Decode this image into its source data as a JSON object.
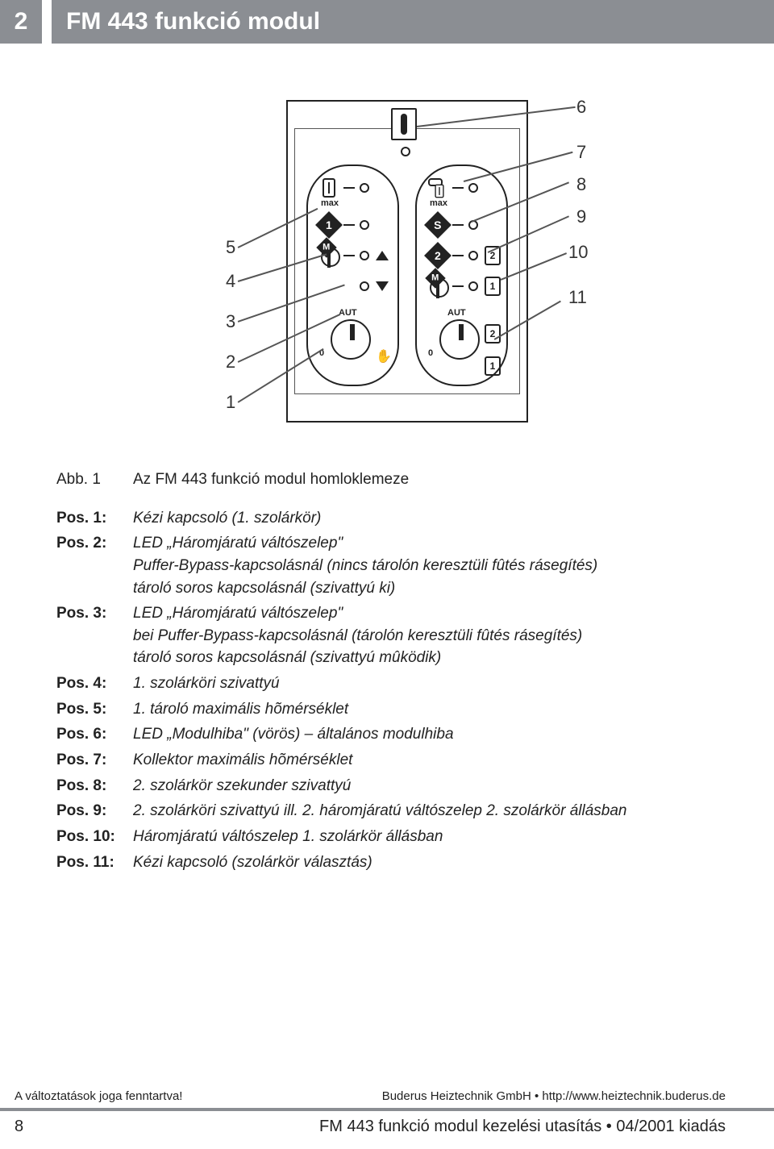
{
  "header": {
    "chapter_num": "2",
    "title": "FM 443 funkció modul"
  },
  "figure": {
    "callouts_left": [
      "5",
      "4",
      "3",
      "2",
      "1"
    ],
    "callouts_right": [
      "6",
      "7",
      "8",
      "9",
      "10",
      "11"
    ],
    "panel_left": {
      "max": "max",
      "badge1": "1",
      "badgeM": "M",
      "aut": "AUT",
      "zero": "0"
    },
    "panel_right": {
      "max": "max",
      "badgeS": "S",
      "badge2": "2",
      "badgeM": "M",
      "aut": "AUT",
      "zero": "0",
      "sq2a": "2",
      "sq1a": "1",
      "sq2b": "2",
      "sq1b": "1"
    }
  },
  "abb": {
    "key": "Abb. 1",
    "val": "Az FM 443 funkció modul homloklemeze"
  },
  "positions": [
    {
      "key": "Pos. 1:",
      "lines": [
        "Kézi kapcsoló (1. szolárkör)"
      ]
    },
    {
      "key": "Pos. 2:",
      "lines": [
        "LED „Háromjáratú váltószelep\"",
        "Puffer-Bypass-kapcsolásnál (nincs tárolón keresztüli fûtés rásegítés)",
        "tároló soros kapcsolásnál (szivattyú ki)"
      ]
    },
    {
      "key": "Pos. 3:",
      "lines": [
        "LED „Háromjáratú váltószelep\"",
        "bei Puffer-Bypass-kapcsolásnál (tárolón keresztüli fûtés rásegítés)",
        "tároló soros kapcsolásnál (szivattyú mûködik)"
      ]
    },
    {
      "key": "Pos. 4:",
      "lines": [
        "1. szolárköri szivattyú"
      ]
    },
    {
      "key": "Pos. 5:",
      "lines": [
        "1. tároló maximális hõmérséklet"
      ]
    },
    {
      "key": "Pos. 6:",
      "lines": [
        "LED „Modulhiba\" (vörös) – általános modulhiba"
      ]
    },
    {
      "key": "Pos. 7:",
      "lines": [
        "Kollektor maximális hõmérséklet"
      ]
    },
    {
      "key": "Pos. 8:",
      "lines": [
        "2. szolárkör szekunder szivattyú"
      ]
    },
    {
      "key": "Pos. 9:",
      "lines": [
        "2. szolárköri szivattyú ill. 2. háromjáratú váltószelep 2. szolárkör állásban"
      ]
    },
    {
      "key": "Pos. 10:",
      "lines": [
        "Háromjáratú váltószelep 1. szolárkör állásban"
      ]
    },
    {
      "key": "Pos. 11:",
      "lines": [
        "Kézi kapcsoló (szolárkör választás)"
      ]
    }
  ],
  "footer": {
    "left1": "A változtatások joga fenntartva!",
    "right1": "Buderus Heiztechnik GmbH • http://www.heiztechnik.buderus.de",
    "page": "8",
    "right2": "FM 443 funkció modul kezelési utasítás • 04/2001 kiadás"
  }
}
